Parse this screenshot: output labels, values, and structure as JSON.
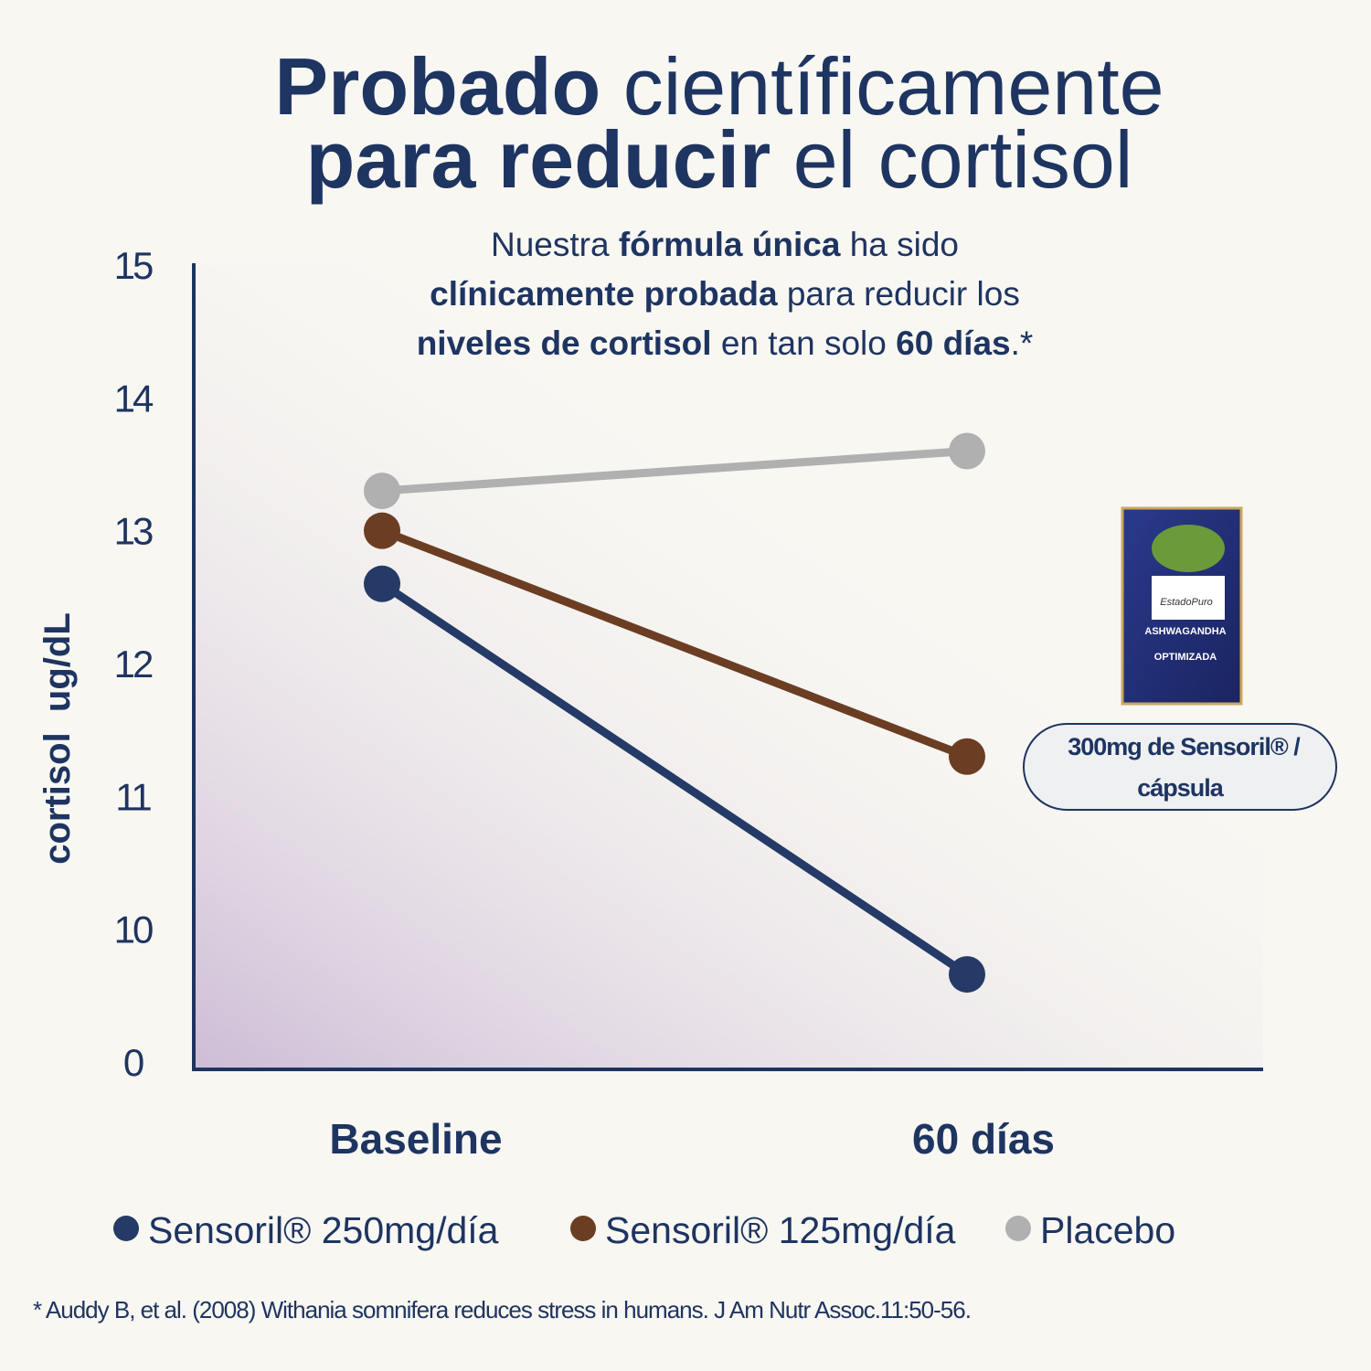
{
  "chart_data": {
    "type": "line",
    "title_lines": [
      [
        {
          "text": "Probado",
          "bold": true
        },
        {
          "text": " científicamente",
          "bold": false
        }
      ],
      [
        {
          "text": "para reducir",
          "bold": true
        },
        {
          "text": " el cortisol",
          "bold": false
        }
      ]
    ],
    "subtitle_lines": [
      [
        {
          "text": "Nuestra ",
          "bold": false
        },
        {
          "text": "fórmula única",
          "bold": true
        },
        {
          "text": " ha sido",
          "bold": false
        }
      ],
      [
        {
          "text": "clínicamente probada",
          "bold": true
        },
        {
          "text": " para reducir los",
          "bold": false
        }
      ],
      [
        {
          "text": "niveles de cortisol",
          "bold": true
        },
        {
          "text": " en tan solo ",
          "bold": false
        },
        {
          "text": "60 días",
          "bold": true
        },
        {
          "text": ".*",
          "bold": false
        }
      ]
    ],
    "ylabel": "cortisol  ug/dL",
    "categories": [
      "Baseline",
      "60 días"
    ],
    "series": [
      {
        "name": "Sensoril® 250mg/día",
        "color": "#253a66",
        "values": [
          12.6,
          6.6
        ]
      },
      {
        "name": "Sensoril® 125mg/día",
        "color": "#6b3e24",
        "values": [
          13.0,
          11.3
        ]
      },
      {
        "name": "Placebo",
        "color": "#b0b0b0",
        "values": [
          13.3,
          13.6
        ]
      }
    ],
    "ylim": [
      0,
      15
    ],
    "yticks": [
      0,
      10,
      11,
      12,
      13,
      14,
      15
    ],
    "product": {
      "brand": "EstadoPuro",
      "name": "ASHWAGANDHA",
      "variant": "OPTIMIZADA"
    },
    "callout_lines": [
      "300mg de Sensoril® /",
      "cápsula"
    ],
    "footnote": "* Auddy B, et al. (2008) Withania somnifera reduces stress in humans. J Am Nutr Assoc.11:50-56."
  }
}
